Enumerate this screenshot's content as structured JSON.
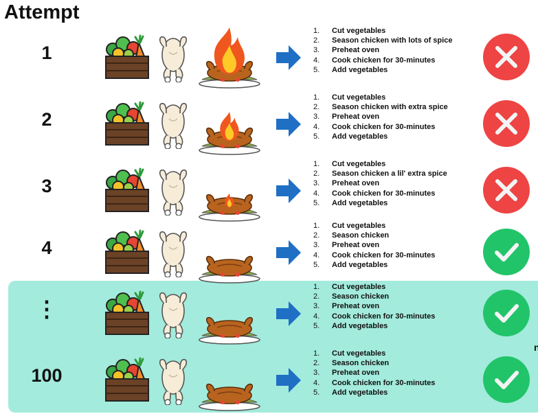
{
  "header": {
    "title": "Attempt"
  },
  "rows": [
    {
      "label": "1",
      "result": "fail",
      "flame": "large",
      "steps": [
        "Cut vegetables",
        "Season chicken with lots of spice",
        "Preheat oven",
        "Cook chicken for 30-minutes",
        "Add vegetables"
      ]
    },
    {
      "label": "2",
      "result": "fail",
      "flame": "medium",
      "steps": [
        "Cut vegetables",
        "Season chicken with extra spice",
        "Preheat oven",
        "Cook chicken for 30-minutes",
        "Add vegetables"
      ]
    },
    {
      "label": "3",
      "result": "fail",
      "flame": "small",
      "steps": [
        "Cut vegetables",
        "Season chicken a lil' extra spice",
        "Preheat oven",
        "Cook chicken for 30-minutes",
        "Add vegetables"
      ]
    },
    {
      "label": "4",
      "result": "success",
      "flame": "none",
      "steps": [
        "Cut vegetables",
        "Season chicken",
        "Preheat oven",
        "Cook chicken for 30-minutes",
        "Add vegetables"
      ]
    },
    {
      "label": "⋮",
      "result": "success",
      "flame": "none",
      "steps": [
        "Cut vegetables",
        "Season chicken",
        "Preheat oven",
        "Cook chicken for 30-minutes",
        "Add vegetables"
      ]
    },
    {
      "label": "100",
      "result": "success",
      "flame": "none",
      "steps": [
        "Cut vegetables",
        "Season chicken",
        "Preheat oven",
        "Cook chicken for 30-minutes",
        "Add vegetables"
      ]
    }
  ],
  "icons": {
    "ingredients": "vegetable-crate-icon",
    "raw": "raw-chicken-icon",
    "dish": "roast-chicken-icon",
    "flow": "arrow-right-icon",
    "fail": "x-circle-icon",
    "success": "check-circle-icon"
  },
  "colors": {
    "highlight": "#a3ebdc",
    "fail": "#ee4444",
    "success": "#22c46a",
    "arrow": "#1f6fc4"
  },
  "edge_text": "n"
}
